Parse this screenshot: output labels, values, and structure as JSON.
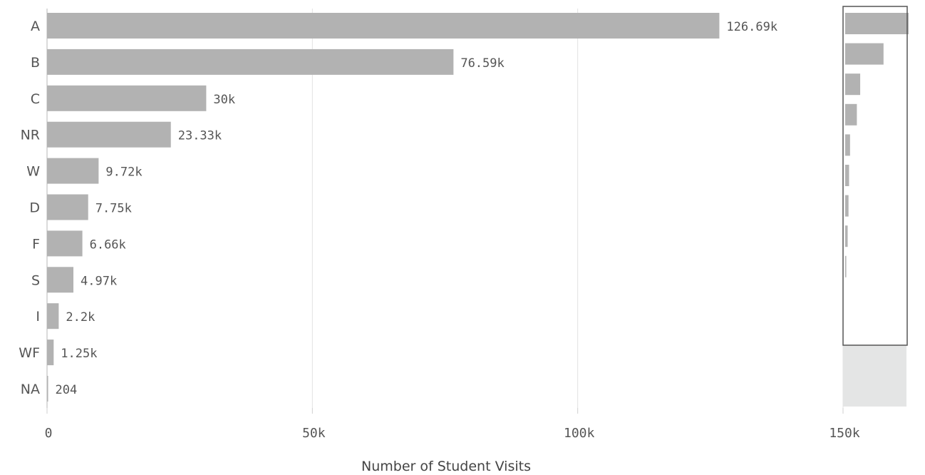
{
  "chart_data": {
    "type": "bar",
    "orientation": "horizontal",
    "title": "",
    "xlabel": "Number of Student Visits",
    "ylabel": "",
    "categories": [
      "A",
      "B",
      "C",
      "NR",
      "W",
      "D",
      "F",
      "S",
      "I",
      "WF",
      "NA"
    ],
    "values": [
      126690,
      76590,
      30000,
      23330,
      9720,
      7750,
      6660,
      4970,
      2200,
      1250,
      204
    ],
    "data_labels": [
      "126.69k",
      "76.59k",
      "30k",
      "23.33k",
      "9.72k",
      "7.75k",
      "6.66k",
      "4.97k",
      "2.2k",
      "1.25k",
      "204"
    ],
    "xlim": [
      0,
      150000
    ],
    "x_ticks": [
      0,
      50000,
      100000,
      150000
    ],
    "x_tick_labels": [
      "0",
      "50k",
      "100k",
      "150k"
    ],
    "grid": "vertical",
    "legend": "none",
    "overview_panel": "right"
  },
  "colors": {
    "bar": "#b2b2b2",
    "grid": "#e2e2e2",
    "axis": "#cfcfcf",
    "text": "#555555",
    "brush_outline": "#555555",
    "overview_shade": "#e4e5e5"
  }
}
